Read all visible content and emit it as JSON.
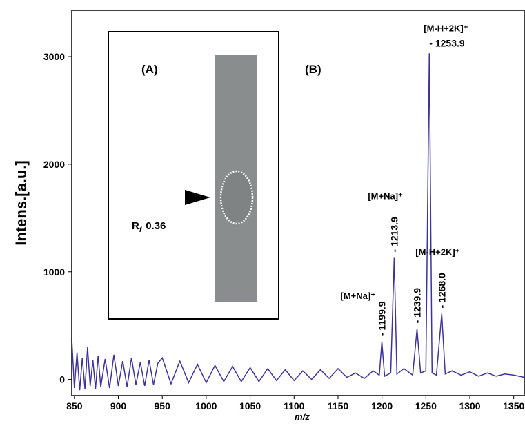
{
  "chart_data": {
    "type": "line",
    "y_label": "Intens.[a.u.]",
    "x_label": "m/z",
    "xlim": [
      847,
      1362
    ],
    "ylim": [
      -150,
      3430
    ],
    "xticks": [
      850,
      900,
      950,
      1000,
      1050,
      1100,
      1150,
      1200,
      1250,
      1300,
      1350
    ],
    "yticks": [
      0,
      1000,
      2000,
      3000
    ],
    "series": [
      {
        "color": "#3d3399",
        "x": [
          847,
          850,
          853,
          856,
          859,
          862,
          865,
          868,
          871,
          874,
          877,
          880,
          885,
          890,
          895,
          900,
          905,
          910,
          915,
          920,
          925,
          930,
          935,
          940,
          945,
          950,
          960,
          970,
          980,
          990,
          1000,
          1010,
          1020,
          1030,
          1040,
          1050,
          1060,
          1070,
          1080,
          1090,
          1100,
          1110,
          1120,
          1130,
          1140,
          1150,
          1160,
          1170,
          1180,
          1190,
          1197,
          1199.9,
          1203,
          1210,
          1213.9,
          1217,
          1225,
          1235,
          1239.9,
          1244,
          1250,
          1253.9,
          1257,
          1262,
          1268.0,
          1272,
          1280,
          1290,
          1300,
          1310,
          1320,
          1330,
          1340,
          1350,
          1362
        ],
        "values": [
          380,
          -80,
          250,
          -100,
          200,
          -90,
          300,
          -60,
          180,
          -90,
          220,
          -70,
          190,
          -80,
          230,
          -60,
          170,
          -70,
          200,
          -50,
          160,
          -60,
          180,
          -50,
          150,
          200,
          -40,
          170,
          -30,
          140,
          -30,
          130,
          -20,
          120,
          -20,
          110,
          -20,
          100,
          -10,
          90,
          -10,
          80,
          0,
          90,
          10,
          100,
          20,
          60,
          10,
          80,
          40,
          350,
          30,
          60,
          1130,
          50,
          100,
          40,
          470,
          60,
          80,
          3030,
          60,
          40,
          610,
          50,
          80,
          40,
          70,
          30,
          60,
          30,
          50,
          40,
          20
        ]
      }
    ],
    "peaks": [
      {
        "mz": 1199.9,
        "label": "- 1199.9",
        "ion": "[M+Na]⁺"
      },
      {
        "mz": 1213.9,
        "label": "- 1213.9",
        "ion": "[M+Na]⁺"
      },
      {
        "mz": 1239.9,
        "label": "- 1239.9"
      },
      {
        "mz": 1253.9,
        "label": "- 1253.9",
        "ion": "[M-H+2K]⁺"
      },
      {
        "mz": 1268.0,
        "label": "- 1268.0",
        "ion": "[M-H+2K]⁺"
      }
    ],
    "panel_a": "(A)",
    "panel_b": "(B)",
    "rf": {
      "symbol": "R",
      "subscript": "f",
      "value": "0.36"
    }
  }
}
